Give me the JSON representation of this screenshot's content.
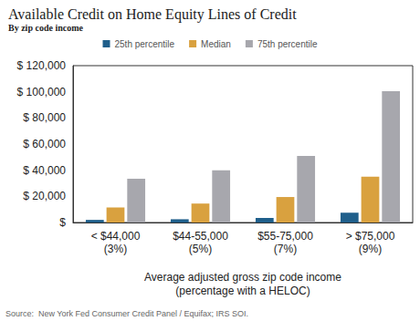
{
  "chart_data": {
    "type": "bar",
    "title": "Available Credit on Home Equity Lines of Credit",
    "subtitle": "By zip code income",
    "x_label": "Average adjusted gross zip code income\n(percentage with a HELOC)",
    "annotations": [
      "Source:  New York Fed Consumer Credit Panel / Equifax; IRS SOI."
    ],
    "categories": [
      "< $44,000\n(3%)",
      "$44-55,000\n(5%)",
      "$55-75,000\n(7%)",
      "> $75,000\n(9%)"
    ],
    "series": [
      {
        "name": "25th percentile",
        "color": "#1f5f8b",
        "values": [
          2000,
          2500,
          3500,
          7500
        ]
      },
      {
        "name": "Median",
        "color": "#d9a13f",
        "values": [
          11500,
          14500,
          19500,
          35000
        ]
      },
      {
        "name": "75th percentile",
        "color": "#a7a7ad",
        "values": [
          33500,
          40000,
          51000,
          100500
        ]
      }
    ],
    "ylim": [
      0,
      120000
    ],
    "yticks": [
      {
        "value": 0,
        "label": "$"
      },
      {
        "value": 20000,
        "label": "$ 20,000"
      },
      {
        "value": 40000,
        "label": "$ 40,000"
      },
      {
        "value": 60000,
        "label": "$ 60,000"
      },
      {
        "value": 80000,
        "label": "$ 80,000"
      },
      {
        "value": 100000,
        "label": "$ 100,000"
      },
      {
        "value": 120000,
        "label": "$ 120,000"
      }
    ],
    "grid": false,
    "legend": "top"
  }
}
